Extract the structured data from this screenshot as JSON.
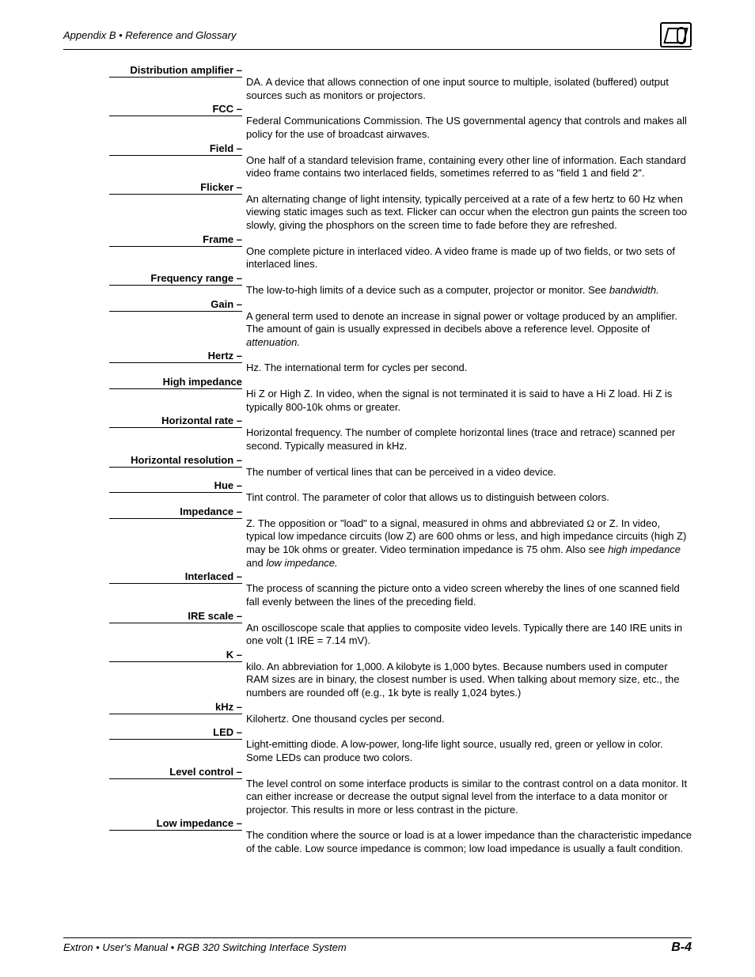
{
  "header": {
    "title": "Appendix B • Reference and Glossary"
  },
  "entries": [
    {
      "term": "Distribution amplifier –",
      "def": "DA. A device that allows connection of one input source to multiple, isolated (buffered) output sources such as monitors or projectors."
    },
    {
      "term": "FCC –",
      "def": "Federal Communications Commission. The US governmental agency that controls and makes all policy for the use of broadcast airwaves."
    },
    {
      "term": "Field –",
      "def": "One half of a standard television frame, containing every other line of information. Each standard video frame contains two interlaced fields, sometimes referred to as \"field 1 and field 2\"."
    },
    {
      "term": "Flicker –",
      "def": "An alternating change of light intensity, typically perceived at a rate of a few hertz to 60 Hz when viewing static images such as text. Flicker can occur when the electron gun paints the screen too slowly, giving the phosphors on the screen time to fade before they are refreshed."
    },
    {
      "term": "Frame –",
      "def": "One complete picture in interlaced video. A video frame is made up of two fields, or two sets of interlaced lines."
    },
    {
      "term": "Frequency range –",
      "def": "The low-to-high limits of a device such as a computer, projector or monitor. See <span class=\"ital\">bandwidth.</span>"
    },
    {
      "term": "Gain –",
      "def": "A general term used to denote an increase in signal power or voltage produced by an amplifier. The amount of gain is usually expressed in decibels above a reference level. Opposite of <span class=\"ital\">attenuation.</span>"
    },
    {
      "term": "Hertz –",
      "def": "Hz. The international term for  cycles per second."
    },
    {
      "term": "High impedance",
      "def": "Hi Z or High Z. In video, when the signal is not terminated it is said to have a Hi Z load. Hi Z is typically 800-10k ohms or greater."
    },
    {
      "term": "Horizontal rate –",
      "def": "Horizontal frequency. The number of complete horizontal lines (trace and retrace) scanned per second. Typically measured in kHz."
    },
    {
      "term": "Horizontal resolution –",
      "def": "The number of vertical lines that can be perceived in a video device."
    },
    {
      "term": "Hue –",
      "def": "Tint control. The parameter of color that allows us to distinguish between colors."
    },
    {
      "term": "Impedance –",
      "def": "Z. The opposition or \"load\" to a signal, measured in ohms and abbreviated <span class=\"omega\">Ω</span> or Z. In video, typical low impedance circuits (low Z) are 600 ohms or less, and high impedance circuits (high Z) may be 10k ohms or greater. Video termination impedance is 75 ohm. Also see <span class=\"ital\">high impedance</span> and <span class=\"ital\">low impedance.</span>"
    },
    {
      "term": "Interlaced –",
      "def": "The process of scanning the picture onto a video screen whereby the lines of one scanned field fall evenly between the lines of the preceding field."
    },
    {
      "term": "IRE scale –",
      "def": "An oscilloscope scale that applies to composite video levels. Typically there are 140 IRE units in one volt (1 IRE = 7.14 mV)."
    },
    {
      "term": "K –",
      "def": "kilo. An abbreviation for 1,000. A kilobyte is 1,000 bytes. Because numbers used in computer RAM sizes are in binary, the closest number is used. When talking about memory size, etc., the numbers are rounded off (e.g., 1k byte is really 1,024 bytes.)"
    },
    {
      "term": "kHz –",
      "def": "Kilohertz. One thousand cycles per second."
    },
    {
      "term": "LED –",
      "def": "Light-emitting diode. A low-power, long-life light source, usually red, green or yellow in color. Some LEDs can produce two colors."
    },
    {
      "term": "Level control –",
      "def": "The level control on some interface products is similar to the contrast control on a data monitor. It can either increase or decrease the output signal level from the interface to a data monitor or projector. This results in more or less contrast in the picture."
    },
    {
      "term": "Low impedance –",
      "def": "The condition where the  source or load is at a lower impedance than the characteristic impedance of the cable. Low source impedance is common; low load impedance is usually a fault condition."
    }
  ],
  "footer": {
    "left": "Extron • User's Manual  • RGB 320 Switching Interface System",
    "right": "B-4"
  }
}
